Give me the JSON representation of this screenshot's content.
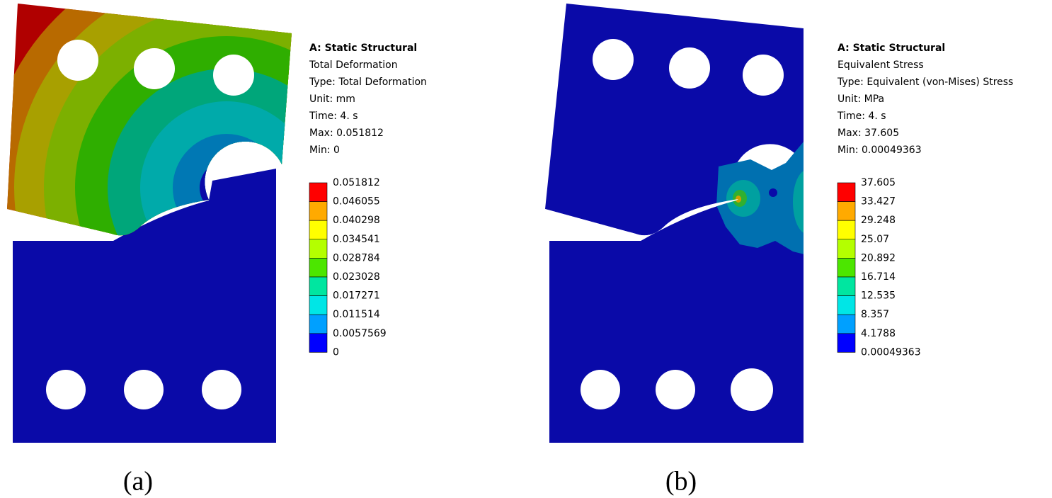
{
  "panels": [
    {
      "title": "A: Static Structural",
      "lines": [
        "Total Deformation",
        "Type: Total Deformation",
        "Unit: mm",
        "Time: 4. s",
        "Max: 0.051812",
        "Min: 0"
      ],
      "legend": {
        "labels": [
          "0.051812",
          "0.046055",
          "0.040298",
          "0.034541",
          "0.028784",
          "0.023028",
          "0.017271",
          "0.011514",
          "0.0057569",
          "0"
        ],
        "colors": [
          "#ff0000",
          "#ffaa00",
          "#ffff00",
          "#b4ff00",
          "#4ce600",
          "#00e6a0",
          "#00e6e6",
          "#00a0ff",
          "#0000ff"
        ]
      },
      "caption": "(a)"
    },
    {
      "title": "A: Static Structural",
      "lines": [
        "Equivalent Stress",
        "Type: Equivalent (von-Mises) Stress",
        "Unit: MPa",
        "Time: 4. s",
        "Max: 37.605",
        "Min: 0.00049363"
      ],
      "legend": {
        "labels": [
          "37.605",
          "33.427",
          "29.248",
          "25.07",
          "20.892",
          "16.714",
          "12.535",
          "8.357",
          "4.1788",
          "0.00049363"
        ],
        "colors": [
          "#ff0000",
          "#ffaa00",
          "#ffff00",
          "#b4ff00",
          "#4ce600",
          "#00e6a0",
          "#00e6e6",
          "#00a0ff",
          "#0000ff"
        ]
      },
      "caption": "(b)"
    }
  ]
}
